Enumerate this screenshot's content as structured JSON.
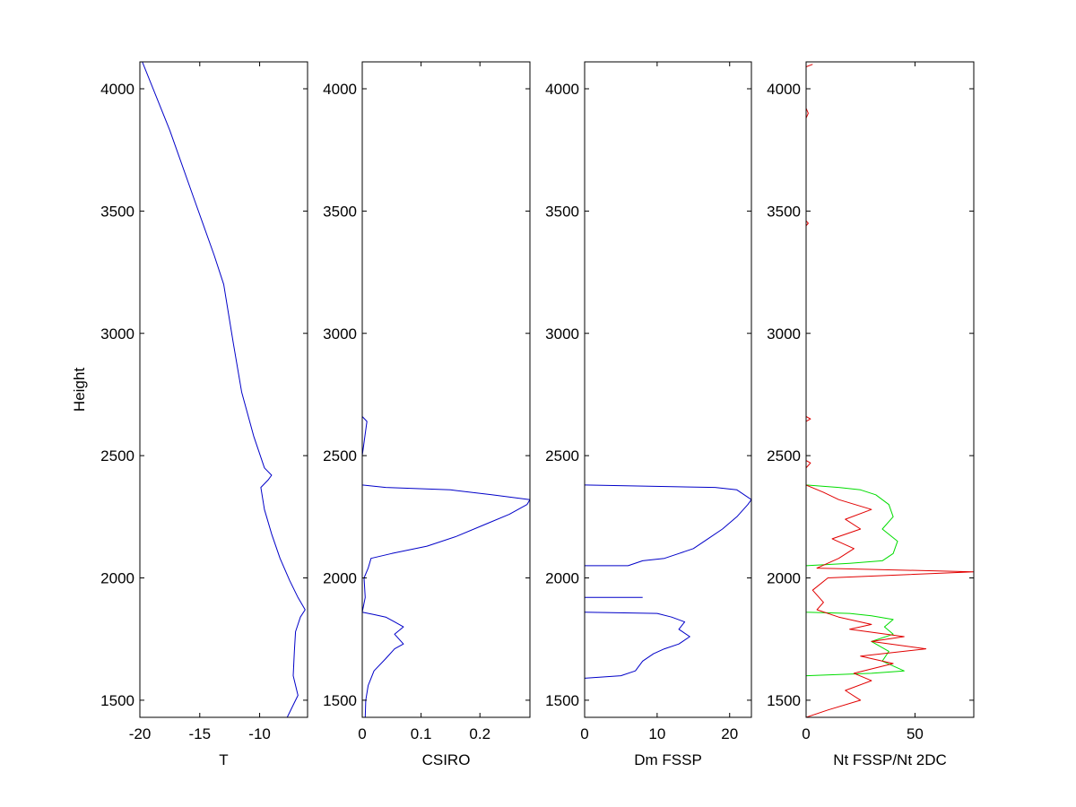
{
  "chart_data": [
    {
      "type": "line",
      "ylabel": "Height",
      "xlabel": "T",
      "xlim": [
        -20,
        -6
      ],
      "ylim": [
        1430,
        4110
      ],
      "xticks": [
        -20,
        -15,
        -10
      ],
      "xtick_labels": [
        "-20",
        "-15",
        "-10"
      ],
      "yticks": [
        1500,
        2000,
        2500,
        3000,
        3500,
        4000
      ],
      "ytick_labels": [
        "1500",
        "2000",
        "2500",
        "3000",
        "3500",
        "4000"
      ],
      "series": [
        {
          "color": "#0000c8",
          "points": [
            [
              -7.7,
              1430
            ],
            [
              -7.1,
              1490
            ],
            [
              -6.8,
              1520
            ],
            [
              -7.2,
              1600
            ],
            [
              -7.1,
              1700
            ],
            [
              -7.0,
              1780
            ],
            [
              -6.6,
              1840
            ],
            [
              -6.2,
              1870
            ],
            [
              -6.8,
              1920
            ],
            [
              -7.5,
              1990
            ],
            [
              -8.3,
              2080
            ],
            [
              -9.0,
              2180
            ],
            [
              -9.6,
              2280
            ],
            [
              -9.9,
              2370
            ],
            [
              -9.3,
              2400
            ],
            [
              -9.0,
              2420
            ],
            [
              -9.6,
              2450
            ],
            [
              -10.5,
              2580
            ],
            [
              -11.5,
              2760
            ],
            [
              -12.2,
              2960
            ],
            [
              -13.0,
              3200
            ],
            [
              -13.8,
              3320
            ],
            [
              -15.4,
              3540
            ],
            [
              -17.5,
              3830
            ],
            [
              -19.8,
              4110
            ]
          ]
        }
      ]
    },
    {
      "type": "line",
      "xlabel": "CSIRO",
      "xlim": [
        0,
        0.285
      ],
      "ylim": [
        1430,
        4110
      ],
      "xticks": [
        0,
        0.1,
        0.2
      ],
      "xtick_labels": [
        "0",
        "0.1",
        "0.2"
      ],
      "yticks": [
        1500,
        2000,
        2500,
        3000,
        3500,
        4000
      ],
      "ytick_labels": [
        "1500",
        "2000",
        "2500",
        "3000",
        "3500",
        "4000"
      ],
      "series": [
        {
          "color": "#0000c8",
          "points": [
            [
              0.005,
              1430
            ],
            [
              0.006,
              1500
            ],
            [
              0.01,
              1560
            ],
            [
              0.02,
              1620
            ],
            [
              0.04,
              1670
            ],
            [
              0.055,
              1710
            ],
            [
              0.07,
              1730
            ],
            [
              0.055,
              1770
            ],
            [
              0.07,
              1800
            ],
            [
              0.055,
              1820
            ],
            [
              0.04,
              1840
            ],
            [
              0.02,
              1850
            ],
            [
              0.0,
              1860
            ],
            [
              0.005,
              1920
            ],
            [
              0.003,
              2000
            ],
            [
              0.01,
              2040
            ],
            [
              0.015,
              2080
            ],
            [
              0.05,
              2100
            ],
            [
              0.11,
              2130
            ],
            [
              0.16,
              2170
            ],
            [
              0.21,
              2220
            ],
            [
              0.25,
              2260
            ],
            [
              0.28,
              2300
            ],
            [
              0.285,
              2320
            ],
            [
              0.22,
              2340
            ],
            [
              0.15,
              2360
            ],
            [
              0.04,
              2370
            ],
            [
              0.0,
              2380
            ],
            [
              0.0,
              2500
            ],
            [
              0.008,
              2640
            ],
            [
              0.0,
              2660
            ],
            [
              0.0,
              2700
            ]
          ]
        }
      ]
    },
    {
      "type": "line",
      "xlabel": "Dm FSSP",
      "xlim": [
        0,
        23
      ],
      "ylim": [
        1430,
        4110
      ],
      "xticks": [
        0,
        10,
        20
      ],
      "xtick_labels": [
        "0",
        "10",
        "20"
      ],
      "yticks": [
        1500,
        2000,
        2500,
        3000,
        3500,
        4000
      ],
      "ytick_labels": [
        "1500",
        "2000",
        "2500",
        "3000",
        "3500",
        "4000"
      ],
      "series": [
        {
          "color": "#0000c8",
          "points": [
            [
              0,
              1590
            ],
            [
              5,
              1600
            ],
            [
              7,
              1620
            ],
            [
              8,
              1660
            ],
            [
              9.5,
              1690
            ],
            [
              11,
              1710
            ],
            [
              13,
              1730
            ],
            [
              14.5,
              1760
            ],
            [
              13,
              1790
            ],
            [
              13.8,
              1820
            ],
            [
              12,
              1840
            ],
            [
              10,
              1855
            ],
            [
              0,
              1860
            ]
          ]
        },
        {
          "color": "#0000c8",
          "points": [
            [
              0,
              1920
            ],
            [
              8,
              1920
            ]
          ]
        },
        {
          "color": "#0000c8",
          "points": [
            [
              0,
              2050
            ],
            [
              6,
              2050
            ],
            [
              8,
              2070
            ],
            [
              11,
              2080
            ],
            [
              13,
              2100
            ],
            [
              15,
              2120
            ],
            [
              17,
              2160
            ],
            [
              19,
              2200
            ],
            [
              21,
              2250
            ],
            [
              22.5,
              2300
            ],
            [
              23,
              2320
            ],
            [
              21,
              2360
            ],
            [
              18,
              2370
            ],
            [
              0,
              2380
            ]
          ]
        }
      ]
    },
    {
      "type": "line",
      "xlabel": "Nt FSSP/Nt 2DC",
      "xlim": [
        0,
        77
      ],
      "ylim": [
        1430,
        4110
      ],
      "xticks": [
        0,
        50
      ],
      "xtick_labels": [
        "0",
        "50"
      ],
      "yticks": [
        1500,
        2000,
        2500,
        3000,
        3500,
        4000
      ],
      "ytick_labels": [
        "1500",
        "2000",
        "2500",
        "3000",
        "3500",
        "4000"
      ],
      "series": [
        {
          "color": "#00dc00",
          "points": [
            [
              0,
              1600
            ],
            [
              30,
              1610
            ],
            [
              45,
              1620
            ],
            [
              35,
              1660
            ],
            [
              38,
              1700
            ],
            [
              30,
              1740
            ],
            [
              40,
              1770
            ],
            [
              36,
              1800
            ],
            [
              40,
              1830
            ],
            [
              30,
              1845
            ],
            [
              20,
              1855
            ],
            [
              0,
              1860
            ],
            [
              0,
              2050
            ],
            [
              20,
              2060
            ],
            [
              35,
              2070
            ],
            [
              40,
              2100
            ],
            [
              42,
              2150
            ],
            [
              35,
              2200
            ],
            [
              40,
              2250
            ],
            [
              38,
              2300
            ],
            [
              32,
              2340
            ],
            [
              25,
              2360
            ],
            [
              15,
              2370
            ],
            [
              0,
              2380
            ]
          ]
        },
        {
          "color": "#e10000",
          "points": [
            [
              0,
              1430
            ],
            [
              10,
              1460
            ],
            [
              25,
              1500
            ],
            [
              18,
              1540
            ],
            [
              30,
              1580
            ],
            [
              22,
              1610
            ],
            [
              40,
              1650
            ],
            [
              25,
              1680
            ],
            [
              55,
              1710
            ],
            [
              30,
              1740
            ],
            [
              45,
              1760
            ],
            [
              20,
              1790
            ],
            [
              30,
              1810
            ],
            [
              15,
              1840
            ],
            [
              5,
              1870
            ],
            [
              8,
              1900
            ],
            [
              3,
              1950
            ],
            [
              10,
              2000
            ],
            [
              77,
              2025
            ],
            [
              5,
              2040
            ],
            [
              15,
              2080
            ],
            [
              22,
              2120
            ],
            [
              12,
              2160
            ],
            [
              25,
              2200
            ],
            [
              18,
              2240
            ],
            [
              30,
              2280
            ],
            [
              15,
              2320
            ],
            [
              8,
              2350
            ],
            [
              0,
              2380
            ],
            [
              0,
              2450
            ],
            [
              2,
              2470
            ],
            [
              0,
              2480
            ],
            [
              0,
              2640
            ],
            [
              2,
              2650
            ],
            [
              0,
              2660
            ],
            [
              0,
              3440
            ],
            [
              1,
              3450
            ],
            [
              0,
              3460
            ],
            [
              0,
              3880
            ],
            [
              1,
              3900
            ],
            [
              0,
              3920
            ],
            [
              0,
              4090
            ],
            [
              3,
              4100
            ]
          ]
        }
      ]
    }
  ]
}
